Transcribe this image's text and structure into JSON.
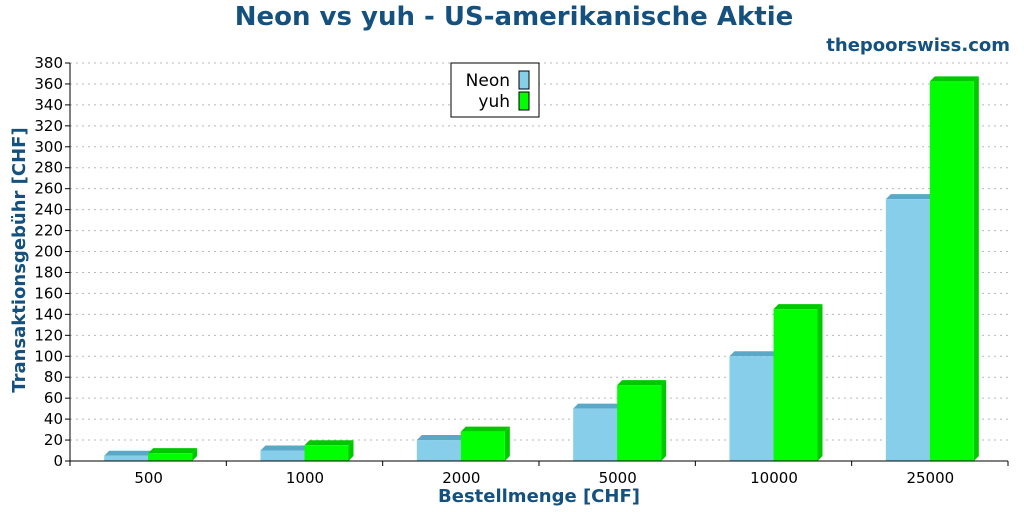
{
  "chart_data": {
    "type": "bar",
    "title": "Neon vs yuh - US-amerikanische Aktie",
    "watermark": "thepoorswiss.com",
    "xlabel": "Bestellmenge [CHF]",
    "ylabel": "Transaktionsgebühr [CHF]",
    "categories": [
      "500",
      "1000",
      "2000",
      "5000",
      "10000",
      "25000"
    ],
    "series": [
      {
        "name": "Neon",
        "values": [
          5,
          10,
          20,
          50,
          100,
          250
        ],
        "color": "#87ceeb",
        "top_color": "#5aa7c8"
      },
      {
        "name": "yuh",
        "values": [
          7.5,
          15,
          28,
          72.5,
          145,
          362.5
        ],
        "color": "#00ff00",
        "top_color": "#00c800"
      }
    ],
    "ylim": [
      0,
      380
    ],
    "ytick_step": 20,
    "grid": true,
    "legend_position": "top-center",
    "three_d": true
  }
}
